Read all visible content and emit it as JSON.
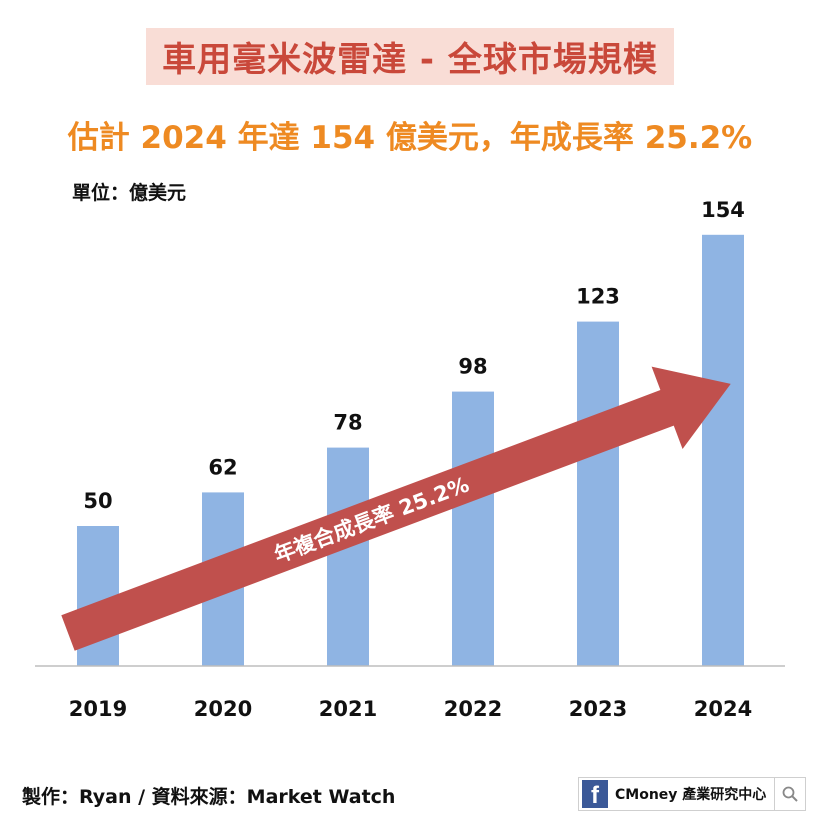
{
  "title": "車用毫米波雷達 - 全球市場規模",
  "subtitle": "估計 2024 年達 154 億美元，年成長率 25.2%",
  "footer": {
    "credit": "製作：Ryan / 資料來源：Market Watch",
    "brand": "CMoney 產業研究中心",
    "fb_icon": "facebook-icon",
    "search_icon": "search-icon"
  },
  "chart_data": {
    "type": "bar",
    "unit_label": "單位：億美元",
    "categories": [
      "2019",
      "2020",
      "2021",
      "2022",
      "2023",
      "2024"
    ],
    "values": [
      50,
      62,
      78,
      98,
      123,
      154
    ],
    "ylim": [
      0,
      160
    ],
    "grid": false,
    "bar_color": "#8fb4e3",
    "annotation": {
      "text": "年複合成長率 25.2%",
      "color": "#c0504d"
    }
  }
}
